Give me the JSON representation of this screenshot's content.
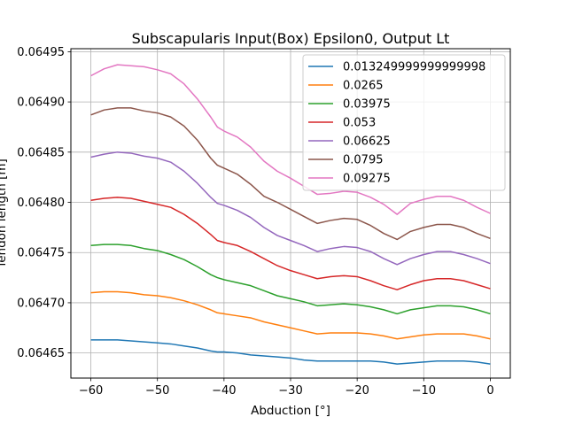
{
  "chart_data": {
    "type": "line",
    "title": "Subscapularis Input(Box) Epsilon0, Output Lt",
    "xlabel": "Abduction [°]",
    "ylabel": "Tendon length [m]",
    "xlim": [
      -63,
      3
    ],
    "ylim": [
      0.064625,
      0.064953
    ],
    "xticks": [
      -60,
      -50,
      -40,
      -30,
      -20,
      -10,
      0
    ],
    "yticks": [
      0.06465,
      0.0647,
      0.06475,
      0.0648,
      0.06485,
      0.0649,
      0.06495
    ],
    "grid": true,
    "legend_position": "top-right",
    "x": [
      -60,
      -58,
      -56,
      -54,
      -52,
      -50,
      -48,
      -46,
      -44,
      -42,
      -41,
      -40,
      -38,
      -36,
      -34,
      -32,
      -30,
      -28,
      -26,
      -24,
      -22,
      -20,
      -18,
      -16,
      -14,
      -12,
      -10,
      -8,
      -6,
      -4,
      -2,
      0
    ],
    "series": [
      {
        "name": "0.013249999999999998",
        "color": "#1f77b4",
        "values": [
          0.064663,
          0.064663,
          0.064663,
          0.064662,
          0.064661,
          0.06466,
          0.064659,
          0.064657,
          0.064655,
          0.064652,
          0.064651,
          0.064651,
          0.06465,
          0.064648,
          0.064647,
          0.064646,
          0.064645,
          0.064643,
          0.064642,
          0.064642,
          0.064642,
          0.064642,
          0.064642,
          0.064641,
          0.064639,
          0.06464,
          0.064641,
          0.064642,
          0.064642,
          0.064642,
          0.064641,
          0.064639
        ]
      },
      {
        "name": "0.0265",
        "color": "#ff7f0e",
        "values": [
          0.06471,
          0.064711,
          0.064711,
          0.06471,
          0.064708,
          0.064707,
          0.064705,
          0.064702,
          0.064698,
          0.064693,
          0.06469,
          0.064689,
          0.064687,
          0.064685,
          0.064681,
          0.064678,
          0.064675,
          0.064672,
          0.064669,
          0.06467,
          0.06467,
          0.06467,
          0.064669,
          0.064667,
          0.064664,
          0.064666,
          0.064668,
          0.064669,
          0.064669,
          0.064669,
          0.064667,
          0.064664
        ]
      },
      {
        "name": "0.03975",
        "color": "#2ca02c",
        "values": [
          0.064757,
          0.064758,
          0.064758,
          0.064757,
          0.064754,
          0.064752,
          0.064748,
          0.064743,
          0.064736,
          0.064728,
          0.064725,
          0.064723,
          0.06472,
          0.064717,
          0.064712,
          0.064707,
          0.064704,
          0.064701,
          0.064697,
          0.064698,
          0.064699,
          0.064698,
          0.064696,
          0.064693,
          0.064689,
          0.064693,
          0.064695,
          0.064697,
          0.064697,
          0.064696,
          0.064693,
          0.064689
        ]
      },
      {
        "name": "0.053",
        "color": "#d62728",
        "values": [
          0.064802,
          0.064804,
          0.064805,
          0.064804,
          0.064801,
          0.064798,
          0.064795,
          0.064788,
          0.064779,
          0.064768,
          0.064762,
          0.06476,
          0.064757,
          0.064751,
          0.064744,
          0.064737,
          0.064732,
          0.064728,
          0.064724,
          0.064726,
          0.064727,
          0.064726,
          0.064722,
          0.064717,
          0.064713,
          0.064718,
          0.064722,
          0.064724,
          0.064724,
          0.064722,
          0.064718,
          0.064714
        ]
      },
      {
        "name": "0.06625",
        "color": "#9467bd",
        "values": [
          0.064845,
          0.064848,
          0.06485,
          0.064849,
          0.064846,
          0.064844,
          0.06484,
          0.064831,
          0.064819,
          0.064805,
          0.064799,
          0.064797,
          0.064792,
          0.064785,
          0.064775,
          0.064767,
          0.064762,
          0.064757,
          0.064751,
          0.064754,
          0.064756,
          0.064755,
          0.064751,
          0.064744,
          0.064738,
          0.064744,
          0.064748,
          0.064751,
          0.064751,
          0.064748,
          0.064744,
          0.064739
        ]
      },
      {
        "name": "0.0795",
        "color": "#8c564b",
        "values": [
          0.064887,
          0.064892,
          0.064894,
          0.064894,
          0.064891,
          0.064889,
          0.064885,
          0.064876,
          0.064862,
          0.064844,
          0.064837,
          0.064834,
          0.064828,
          0.064818,
          0.064806,
          0.0648,
          0.064793,
          0.064786,
          0.064779,
          0.064782,
          0.064784,
          0.064783,
          0.064777,
          0.064769,
          0.064763,
          0.064771,
          0.064775,
          0.064778,
          0.064778,
          0.064775,
          0.064769,
          0.064764
        ]
      },
      {
        "name": "0.09275",
        "color": "#e377c2",
        "values": [
          0.064926,
          0.064933,
          0.064937,
          0.064936,
          0.064935,
          0.064932,
          0.064928,
          0.064918,
          0.064903,
          0.064885,
          0.064875,
          0.064871,
          0.064865,
          0.064855,
          0.064841,
          0.064831,
          0.064824,
          0.064816,
          0.064808,
          0.064809,
          0.064811,
          0.06481,
          0.064805,
          0.064798,
          0.064788,
          0.064799,
          0.064803,
          0.064806,
          0.064806,
          0.064802,
          0.064795,
          0.064789
        ]
      }
    ]
  }
}
